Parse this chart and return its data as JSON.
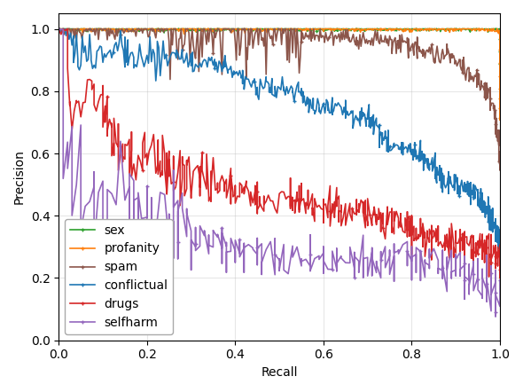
{
  "title": "",
  "xlabel": "Recall",
  "ylabel": "Precision",
  "xlim": [
    0.0,
    1.0
  ],
  "ylim": [
    0.0,
    1.05
  ],
  "xticks": [
    0.0,
    0.2,
    0.4,
    0.6,
    0.8,
    1.0
  ],
  "yticks": [
    0.0,
    0.2,
    0.4,
    0.6,
    0.8,
    1.0
  ],
  "figsize": [
    5.9,
    4.42
  ],
  "dpi": 100,
  "series": {
    "conflictual": {
      "color": "#1f77b4",
      "label": "conflictual"
    },
    "profanity": {
      "color": "#ff7f0e",
      "label": "profanity"
    },
    "sex": {
      "color": "#2ca02c",
      "label": "sex"
    },
    "drugs": {
      "color": "#d62728",
      "label": "drugs"
    },
    "selfharm": {
      "color": "#9467bd",
      "label": "selfharm"
    },
    "spam": {
      "color": "#8c564b",
      "label": "spam"
    }
  },
  "legend_loc": "lower left",
  "legend_fontsize": 10
}
